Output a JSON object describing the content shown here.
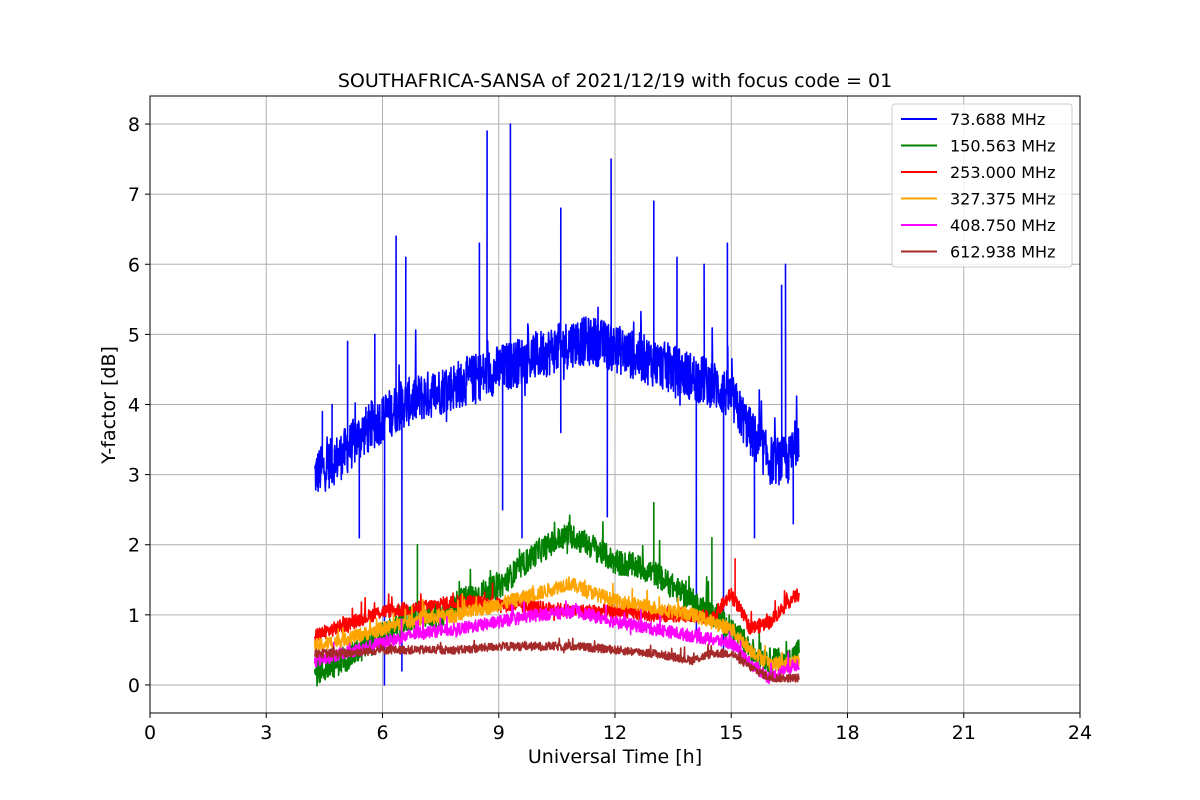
{
  "chart_data": {
    "type": "line",
    "title": "SOUTHAFRICA-SANSA of 2021/12/19 with focus code = 01",
    "xlabel": "Universal Time [h]",
    "ylabel": "Y-factor [dB]",
    "xlim": [
      0,
      24
    ],
    "ylim": [
      -0.4,
      8.4
    ],
    "xticks": [
      0,
      3,
      6,
      9,
      12,
      15,
      18,
      21,
      24
    ],
    "yticks": [
      0,
      1,
      2,
      3,
      4,
      5,
      6,
      7,
      8
    ],
    "grid": true,
    "legend_position": "top-right",
    "series": [
      {
        "name": "  73.688 MHz",
        "color": "#0000ff",
        "x": [
          4.25,
          4.5,
          5.0,
          5.5,
          6.0,
          6.5,
          7.0,
          7.5,
          8.0,
          8.5,
          9.0,
          9.5,
          10.0,
          10.5,
          11.0,
          11.5,
          12.0,
          12.5,
          13.0,
          13.5,
          14.0,
          14.5,
          15.0,
          15.5,
          16.0,
          16.5,
          16.75
        ],
        "y": [
          3.0,
          3.1,
          3.3,
          3.6,
          3.8,
          4.0,
          4.1,
          4.2,
          4.3,
          4.4,
          4.5,
          4.6,
          4.7,
          4.8,
          4.9,
          4.9,
          4.8,
          4.7,
          4.6,
          4.5,
          4.4,
          4.3,
          4.1,
          3.6,
          3.2,
          3.2,
          3.6
        ],
        "noise": 0.35,
        "spikes": [
          [
            4.45,
            3.9
          ],
          [
            4.7,
            4.0
          ],
          [
            5.1,
            4.9
          ],
          [
            5.4,
            2.1
          ],
          [
            5.8,
            5.0
          ],
          [
            6.05,
            0.0
          ],
          [
            6.35,
            6.4
          ],
          [
            6.5,
            0.2
          ],
          [
            6.6,
            6.1
          ],
          [
            8.5,
            6.3
          ],
          [
            8.7,
            7.9
          ],
          [
            9.1,
            2.5
          ],
          [
            9.3,
            8.0
          ],
          [
            9.6,
            2.1
          ],
          [
            10.6,
            6.8
          ],
          [
            10.6,
            3.6
          ],
          [
            11.8,
            2.4
          ],
          [
            11.9,
            7.5
          ],
          [
            13.0,
            6.9
          ],
          [
            13.6,
            6.1
          ],
          [
            14.1,
            0.7
          ],
          [
            14.3,
            6.0
          ],
          [
            14.8,
            0.4
          ],
          [
            14.9,
            6.3
          ],
          [
            16.4,
            6.0
          ],
          [
            16.6,
            2.3
          ],
          [
            16.3,
            5.7
          ],
          [
            15.6,
            2.1
          ]
        ]
      },
      {
        "name": "150.563 MHz",
        "color": "#008000",
        "x": [
          4.25,
          5.0,
          6.0,
          6.9,
          7.5,
          8.0,
          9.0,
          10.0,
          10.8,
          11.5,
          12.0,
          12.5,
          13.0,
          13.5,
          14.0,
          14.5,
          15.0,
          15.5,
          16.0,
          16.5,
          16.75
        ],
        "y": [
          0.15,
          0.35,
          0.7,
          1.0,
          1.0,
          1.2,
          1.4,
          1.9,
          2.15,
          1.95,
          1.75,
          1.7,
          1.6,
          1.4,
          1.2,
          1.0,
          0.8,
          0.5,
          0.35,
          0.35,
          0.5
        ],
        "noise": 0.18,
        "spikes": [
          [
            6.9,
            2.0
          ],
          [
            13.0,
            2.6
          ],
          [
            14.5,
            2.1
          ]
        ]
      },
      {
        "name": "253.000 MHz",
        "color": "#ff0000",
        "x": [
          4.25,
          5.0,
          6.0,
          7.0,
          8.0,
          9.0,
          10.0,
          11.0,
          12.0,
          13.0,
          14.0,
          14.5,
          15.0,
          15.5,
          16.0,
          16.5,
          16.75
        ],
        "y": [
          0.7,
          0.85,
          1.05,
          1.1,
          1.2,
          1.15,
          1.1,
          1.05,
          1.05,
          1.0,
          1.0,
          0.95,
          1.3,
          0.8,
          0.9,
          1.2,
          1.3
        ],
        "noise": 0.1,
        "spikes": [
          [
            15.1,
            1.8
          ]
        ]
      },
      {
        "name": "327.375 MHz",
        "color": "#ffa500",
        "x": [
          4.25,
          5.0,
          6.0,
          7.0,
          8.0,
          9.0,
          10.0,
          10.8,
          11.5,
          12.0,
          13.0,
          14.0,
          15.0,
          15.5,
          16.0,
          16.5,
          16.75
        ],
        "y": [
          0.55,
          0.65,
          0.8,
          0.95,
          1.0,
          1.15,
          1.3,
          1.45,
          1.3,
          1.2,
          1.1,
          1.0,
          0.8,
          0.5,
          0.3,
          0.3,
          0.35
        ],
        "noise": 0.1,
        "spikes": []
      },
      {
        "name": "408.750 MHz",
        "color": "#ff00ff",
        "x": [
          4.25,
          5.0,
          6.0,
          7.0,
          8.0,
          9.0,
          10.0,
          11.0,
          12.0,
          13.0,
          14.0,
          15.0,
          15.5,
          16.0,
          16.5,
          16.75
        ],
        "y": [
          0.35,
          0.45,
          0.6,
          0.75,
          0.8,
          0.9,
          1.0,
          1.05,
          0.9,
          0.8,
          0.7,
          0.6,
          0.3,
          0.1,
          0.25,
          0.3
        ],
        "noise": 0.09,
        "spikes": []
      },
      {
        "name": "612.938 MHz",
        "color": "#a52a2a",
        "x": [
          4.25,
          5.0,
          6.0,
          7.0,
          8.0,
          9.0,
          10.0,
          11.0,
          12.0,
          13.0,
          14.0,
          14.5,
          15.0,
          15.5,
          16.0,
          16.5,
          16.75
        ],
        "y": [
          0.45,
          0.45,
          0.5,
          0.5,
          0.5,
          0.55,
          0.55,
          0.55,
          0.5,
          0.45,
          0.35,
          0.45,
          0.45,
          0.25,
          0.1,
          0.1,
          0.1
        ],
        "noise": 0.06,
        "spikes": []
      }
    ]
  }
}
